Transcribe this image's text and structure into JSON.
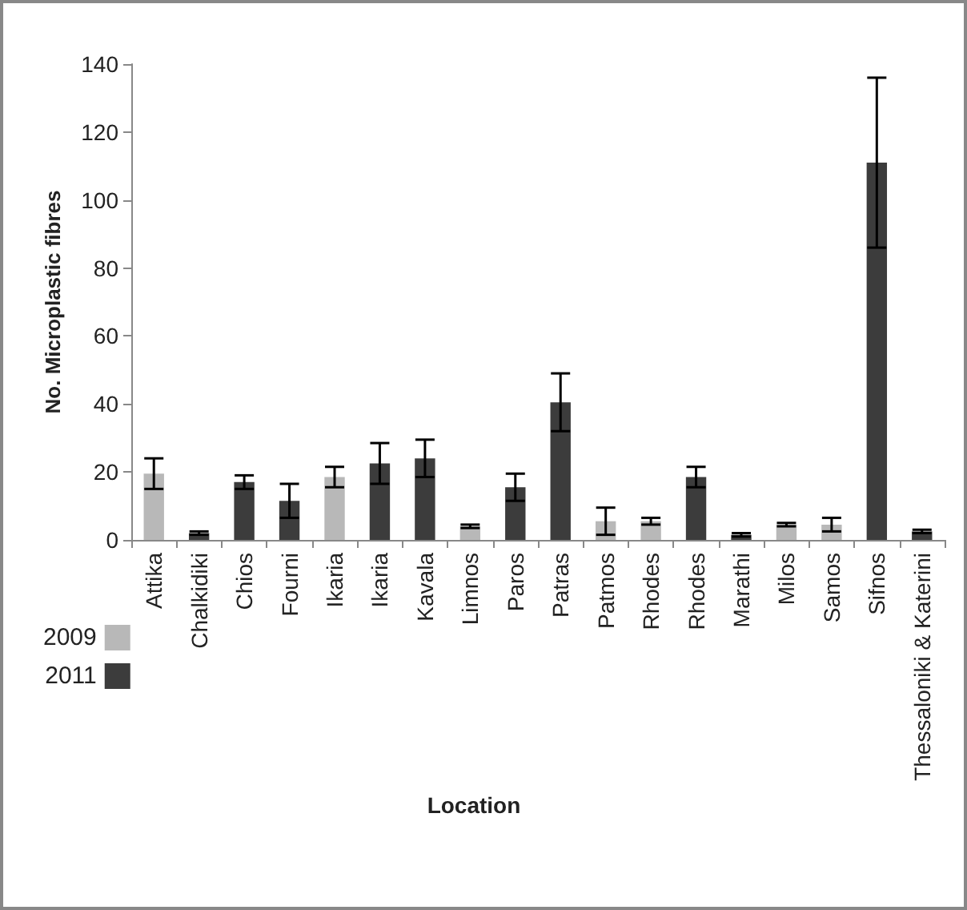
{
  "chart_data": {
    "type": "bar",
    "xlabel": "Location",
    "ylabel": "No. Microplastic fibres",
    "categories": [
      "Attika",
      "Chalkidiki",
      "Chios",
      "Fourni",
      "Ikaria",
      "Ikaria",
      "Kavala",
      "Limnos",
      "Paros",
      "Patras",
      "Patmos",
      "Rhodes",
      "Rhodes",
      "Marathi",
      "Milos",
      "Samos",
      "Sifnos",
      "Thessaloniki & Katerini"
    ],
    "series": [
      {
        "name": "2009",
        "color": "#b8b8b8",
        "values": [
          19.5,
          null,
          null,
          null,
          18.5,
          null,
          null,
          4,
          null,
          null,
          5.5,
          5.5,
          null,
          null,
          4.5,
          4.5,
          null,
          null
        ],
        "errors": [
          4.5,
          null,
          null,
          null,
          3,
          null,
          null,
          0.5,
          null,
          null,
          4,
          1,
          null,
          null,
          0.5,
          2,
          null,
          null
        ]
      },
      {
        "name": "2011",
        "color": "#3c3c3c",
        "values": [
          null,
          2,
          17,
          11.5,
          null,
          22.5,
          24,
          null,
          15.5,
          40.5,
          null,
          null,
          18.5,
          1.5,
          null,
          null,
          111,
          2.5
        ],
        "errors": [
          null,
          0.5,
          2,
          5,
          null,
          6,
          5.5,
          null,
          4,
          8.5,
          null,
          null,
          3,
          0.5,
          null,
          null,
          25,
          0.5
        ]
      }
    ],
    "ylim": [
      0,
      140
    ],
    "yticks": [
      0,
      20,
      40,
      60,
      80,
      100,
      120,
      140
    ],
    "grid": false,
    "legend": "bottom left"
  }
}
